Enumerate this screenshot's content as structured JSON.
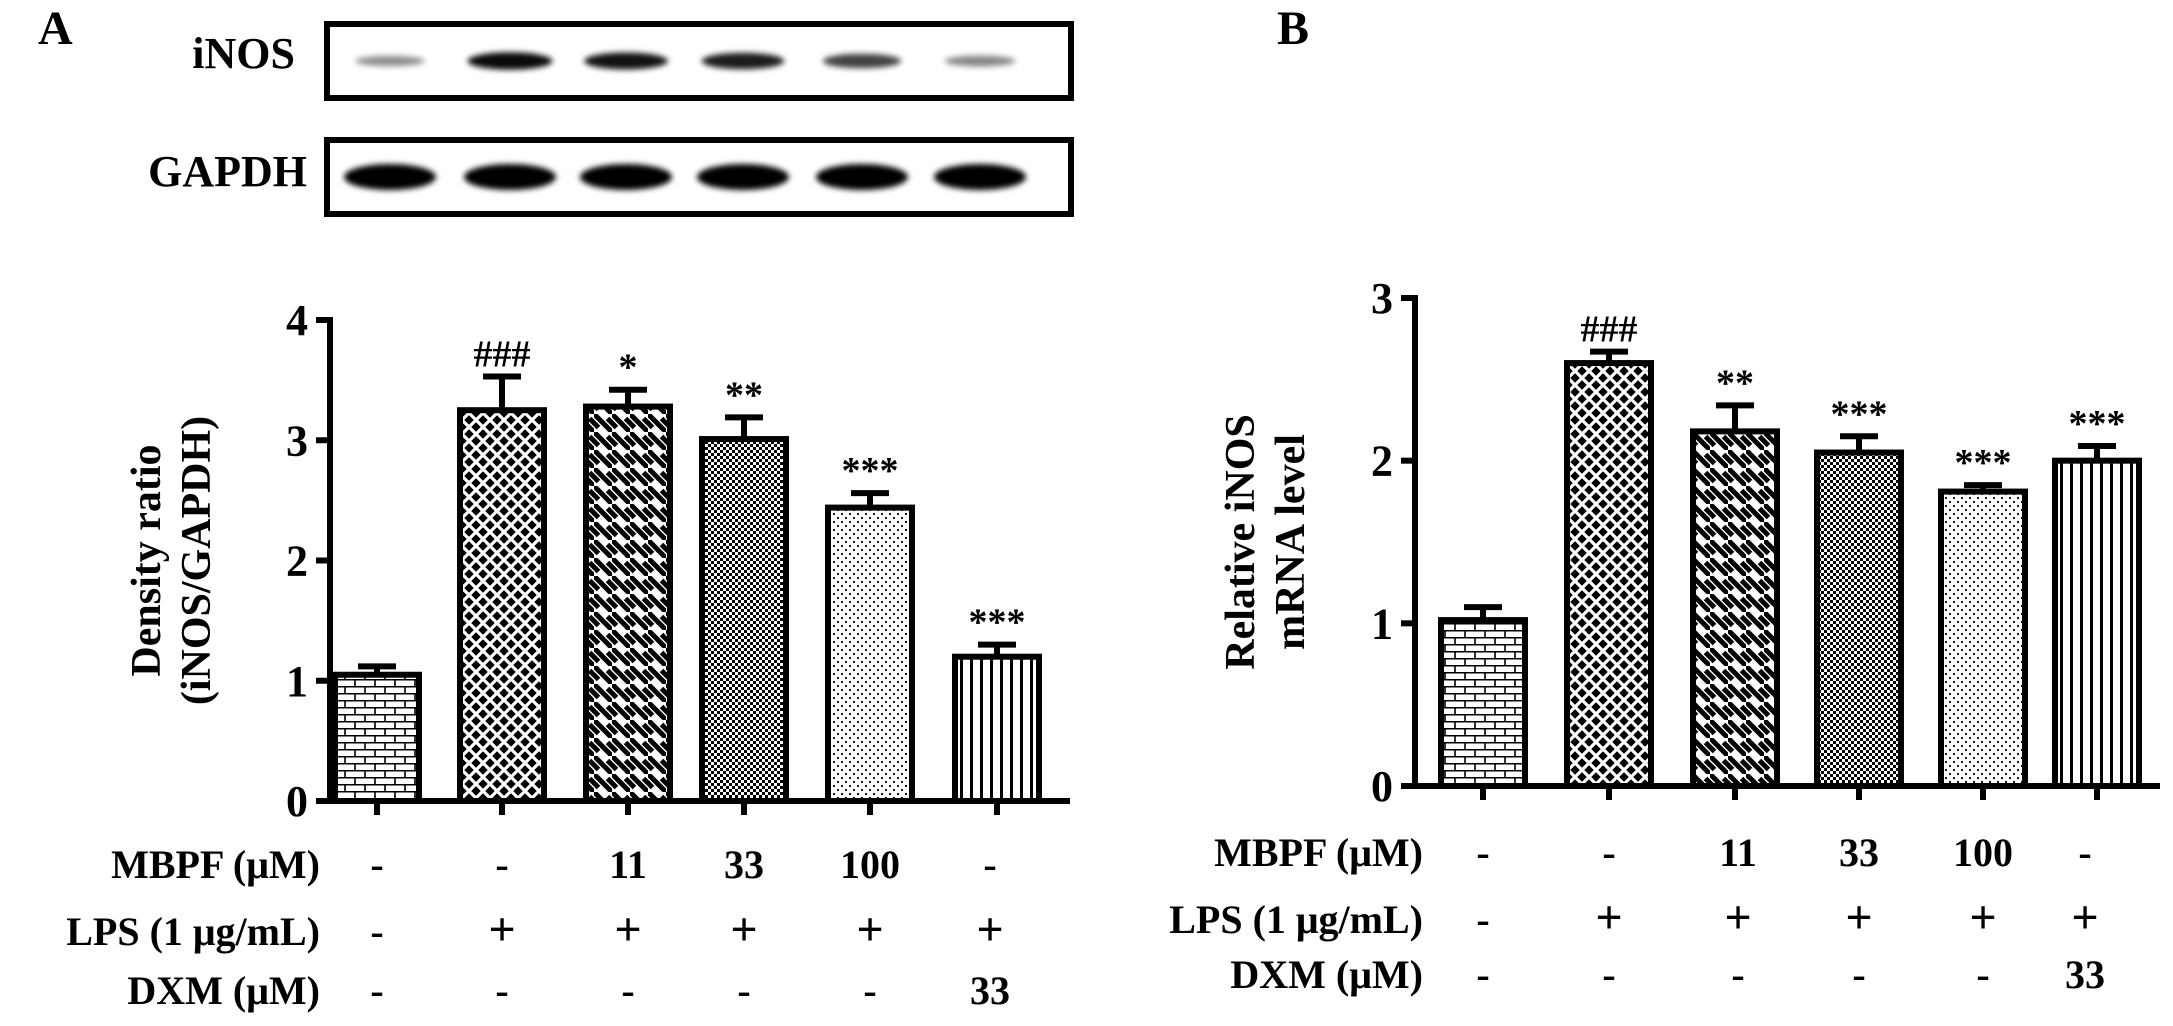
{
  "panels": {
    "a": {
      "letter": "A"
    },
    "b": {
      "letter": "B"
    }
  },
  "blot": {
    "rows": [
      {
        "label": "iNOS",
        "intensity": [
          0.25,
          0.95,
          0.9,
          0.85,
          0.65,
          0.3
        ]
      },
      {
        "label": "GAPDH",
        "intensity": [
          1,
          1,
          1,
          1,
          1,
          1
        ]
      }
    ]
  },
  "treatments_a": [
    {
      "label": "MBPF (μM)",
      "values": [
        "-",
        "-",
        "11",
        "33",
        "100",
        "-"
      ]
    },
    {
      "label": "LPS (1 μg/mL)",
      "values": [
        "-",
        "+",
        "+",
        "+",
        "+",
        "+"
      ]
    },
    {
      "label": "DXM (μM)",
      "values": [
        "-",
        "-",
        "-",
        "-",
        "-",
        "33"
      ]
    }
  ],
  "treatments_b": [
    {
      "label": "MBPF (μM)",
      "values": [
        "-",
        "-",
        "11",
        "33",
        "100",
        "-"
      ]
    },
    {
      "label": "LPS (1 μg/mL)",
      "values": [
        "-",
        "+",
        "+",
        "+",
        "+",
        "+"
      ]
    },
    {
      "label": "DXM (μM)",
      "values": [
        "-",
        "-",
        "-",
        "-",
        "-",
        "33"
      ]
    }
  ],
  "colors": {
    "ink": "#000000",
    "background": "#ffffff"
  },
  "chart_data": [
    {
      "panel": "A",
      "type": "bar",
      "ylabel_lines": [
        "Density ratio",
        "(iNOS/GAPDH)"
      ],
      "ylim": [
        0,
        4
      ],
      "yticks": [
        0,
        1,
        2,
        3,
        4
      ],
      "values": [
        1.05,
        3.25,
        3.28,
        3.01,
        2.44,
        1.2
      ],
      "errors": [
        0.07,
        0.28,
        0.14,
        0.18,
        0.12,
        0.1
      ],
      "annotations": [
        "",
        "###",
        "*",
        "**",
        "***",
        "***"
      ],
      "patterns": [
        "brick",
        "crosshatch",
        "diagonal",
        "dense-dots",
        "sparse-dots",
        "vertical"
      ],
      "grid": false
    },
    {
      "panel": "B",
      "type": "bar",
      "ylabel_lines": [
        "Relative iNOS",
        "mRNA level"
      ],
      "ylim": [
        0,
        3
      ],
      "yticks": [
        0,
        1,
        2,
        3
      ],
      "values": [
        1.02,
        2.6,
        2.18,
        2.05,
        1.81,
        2.0
      ],
      "errors": [
        0.08,
        0.07,
        0.16,
        0.1,
        0.04,
        0.09
      ],
      "annotations": [
        "",
        "###",
        "**",
        "***",
        "***",
        "***"
      ],
      "patterns": [
        "brick",
        "crosshatch",
        "diagonal",
        "dense-dots",
        "sparse-dots",
        "vertical"
      ],
      "grid": false
    }
  ]
}
